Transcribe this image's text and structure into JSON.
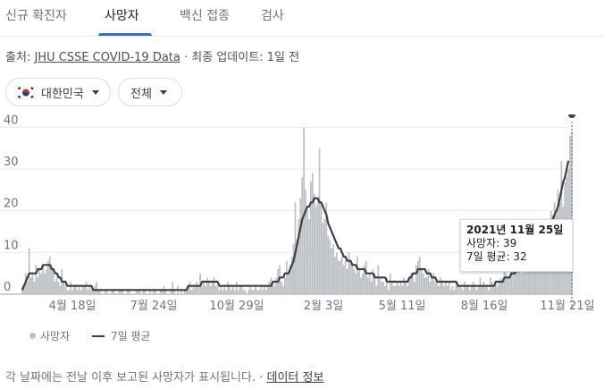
{
  "tabs": [
    {
      "label": "신규 확진자",
      "active": false
    },
    {
      "label": "사망자",
      "active": true
    },
    {
      "label": "백신 접종",
      "active": false
    },
    {
      "label": "검사",
      "active": false
    }
  ],
  "source": {
    "prefix": "출처:",
    "link": "JHU CSSE COVID-19 Data",
    "separator": "·",
    "updated": "최종 업데이트: 1일 전"
  },
  "filters": {
    "country": "대한민국",
    "scope": "전체"
  },
  "chart_data": {
    "type": "bar",
    "series": [
      {
        "name": "사망자",
        "kind": "bar",
        "color": "#bdc1c6",
        "values": [
          2,
          2,
          5,
          3,
          11,
          4,
          5,
          3,
          7,
          4,
          6,
          5,
          7,
          5,
          6,
          8,
          9,
          7,
          6,
          3,
          4,
          3,
          2,
          6,
          3,
          2,
          1,
          1,
          3,
          1,
          2,
          2,
          1,
          2,
          1,
          2,
          2,
          3,
          1,
          2,
          1,
          1,
          2,
          3,
          1,
          1,
          0,
          0,
          1,
          1,
          0,
          0,
          1,
          1,
          0,
          0,
          1,
          1,
          1,
          0,
          0,
          1,
          1,
          0,
          0,
          0,
          1,
          1,
          1,
          0,
          1,
          1,
          0,
          0,
          1,
          0,
          1,
          1,
          0,
          0,
          1,
          1,
          2,
          1,
          0,
          0,
          1,
          3,
          1,
          0,
          2,
          0,
          1,
          0,
          1,
          1,
          2,
          3,
          1,
          2,
          2,
          3,
          2,
          5,
          2,
          3,
          2,
          4,
          3,
          2,
          3,
          4,
          2,
          2,
          1,
          2,
          1,
          2,
          1,
          3,
          2,
          1,
          2,
          1,
          3,
          1,
          2,
          2,
          1,
          1,
          0,
          1,
          2,
          1,
          1,
          2,
          1,
          1,
          2,
          1,
          2,
          1,
          2,
          3,
          4,
          3,
          2,
          4,
          6,
          7,
          3,
          2,
          4,
          8,
          5,
          7,
          9,
          12,
          22,
          13,
          18,
          23,
          28,
          40,
          25,
          20,
          18,
          27,
          29,
          24,
          21,
          23,
          35,
          22,
          17,
          18,
          22,
          14,
          13,
          11,
          12,
          9,
          10,
          8,
          8,
          9,
          7,
          8,
          6,
          10,
          8,
          7,
          6,
          5,
          9,
          6,
          4,
          5,
          7,
          8,
          4,
          5,
          3,
          6,
          5,
          2,
          7,
          4,
          3,
          3,
          2,
          4,
          1,
          5,
          3,
          2,
          2,
          3,
          2,
          3,
          2,
          4,
          3,
          2,
          4,
          5,
          4,
          3,
          7,
          8,
          9,
          6,
          5,
          4,
          4,
          6,
          3,
          4,
          5,
          3,
          3,
          2,
          4,
          3,
          2,
          3,
          2,
          3,
          1,
          2,
          1,
          2,
          3,
          2,
          2,
          1,
          3,
          2,
          2,
          1,
          2,
          3,
          2,
          1,
          2,
          4,
          2,
          3,
          2,
          2,
          1,
          4,
          3,
          2,
          3,
          2,
          3,
          4,
          3,
          6,
          5,
          4,
          4,
          6,
          5,
          7,
          8,
          6,
          9,
          5,
          7,
          6,
          8,
          9,
          10,
          8,
          12,
          11,
          9,
          10,
          14,
          13,
          12,
          15,
          16,
          18,
          20,
          19,
          22,
          19,
          25,
          22,
          32,
          21,
          27,
          28,
          30,
          38,
          39
        ]
      },
      {
        "name": "7일 평균",
        "kind": "line",
        "color": "#3c4043",
        "values": [
          1,
          2,
          3,
          4,
          5,
          5,
          5,
          5,
          5,
          6,
          6,
          6,
          7,
          7,
          7,
          7,
          7,
          6,
          6,
          5,
          5,
          4,
          4,
          3,
          3,
          3,
          2,
          2,
          2,
          2,
          2,
          2,
          2,
          2,
          2,
          2,
          2,
          2,
          2,
          2,
          2,
          1,
          1,
          1,
          1,
          1,
          1,
          1,
          1,
          1,
          1,
          1,
          1,
          1,
          1,
          1,
          1,
          1,
          1,
          1,
          1,
          1,
          1,
          1,
          1,
          1,
          1,
          1,
          1,
          1,
          1,
          1,
          1,
          1,
          1,
          1,
          1,
          1,
          1,
          1,
          1,
          1,
          1,
          1,
          1,
          1,
          1,
          1,
          1,
          1,
          1,
          1,
          1,
          1,
          1,
          1,
          2,
          2,
          2,
          2,
          2,
          2,
          2,
          2,
          3,
          3,
          3,
          3,
          3,
          3,
          3,
          3,
          3,
          3,
          2,
          2,
          2,
          2,
          2,
          2,
          2,
          2,
          2,
          2,
          2,
          2,
          2,
          2,
          2,
          2,
          2,
          2,
          2,
          2,
          2,
          2,
          2,
          2,
          2,
          2,
          2,
          2,
          2,
          2,
          2,
          3,
          3,
          3,
          3,
          4,
          4,
          4,
          5,
          5,
          5,
          6,
          7,
          8,
          10,
          12,
          14,
          16,
          18,
          19,
          20,
          21,
          21,
          22,
          22,
          23,
          23,
          23,
          22,
          22,
          21,
          20,
          19,
          17,
          16,
          15,
          14,
          13,
          12,
          11,
          11,
          10,
          9,
          9,
          8,
          8,
          8,
          7,
          7,
          7,
          6,
          6,
          6,
          6,
          6,
          5,
          5,
          5,
          5,
          5,
          4,
          4,
          4,
          4,
          4,
          4,
          4,
          3,
          3,
          3,
          3,
          3,
          3,
          3,
          3,
          3,
          3,
          3,
          3,
          3,
          4,
          4,
          5,
          5,
          5,
          6,
          6,
          6,
          6,
          6,
          5,
          5,
          5,
          4,
          4,
          4,
          3,
          3,
          3,
          3,
          3,
          3,
          3,
          3,
          3,
          3,
          3,
          3,
          2,
          2,
          2,
          2,
          2,
          2,
          2,
          2,
          2,
          2,
          2,
          2,
          2,
          2,
          2,
          2,
          2,
          2,
          2,
          2,
          2,
          2,
          3,
          3,
          3,
          3,
          3,
          4,
          4,
          4,
          4,
          5,
          5,
          5,
          6,
          6,
          6,
          7,
          7,
          7,
          8,
          8,
          9,
          9,
          10,
          10,
          11,
          11,
          12,
          13,
          13,
          14,
          15,
          16,
          17,
          18,
          19,
          20,
          21,
          23,
          25,
          27,
          28,
          30,
          32
        ]
      }
    ],
    "yticks": [
      0,
      10,
      20,
      30,
      40
    ],
    "ylim": [
      0,
      42
    ],
    "xtick_labels": [
      "4월 18일",
      "7월 24일",
      "10월 29일",
      "2월 3일",
      "5월 11일",
      "8월 16일",
      "11월 21일"
    ],
    "grid": true,
    "tooltip": {
      "date": "2021년 11월 25일",
      "line1": "사망자: 39",
      "line2": "7일 평균: 32"
    }
  },
  "legend": {
    "bars": "사망자",
    "line": "7일 평균"
  },
  "footer": {
    "text": "각 날짜에는 전날 이후 보고된 사망자가 표시됩니다.",
    "separator": "·",
    "link": "데이터 정보"
  },
  "colors": {
    "accent": "#1a73e8",
    "bar": "#bdc1c6",
    "line": "#3c4043",
    "flag_red": "#cd2e3a",
    "flag_blue": "#0047a0"
  }
}
